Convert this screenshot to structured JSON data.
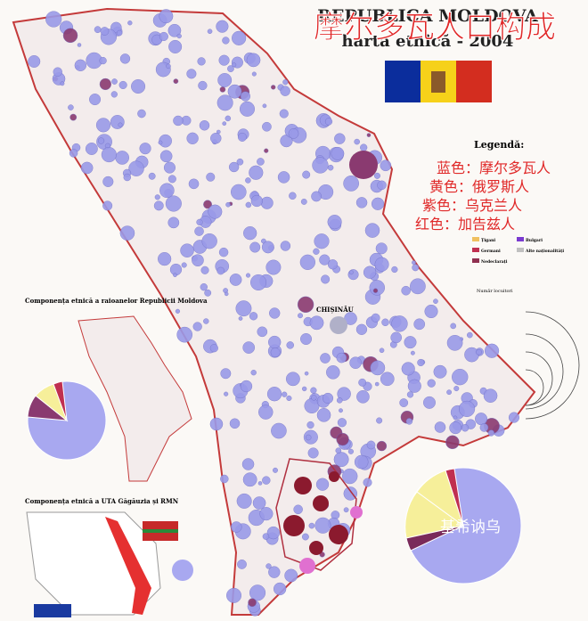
{
  "header": {
    "title": "REPUBLICA MOLDOVA",
    "subtitle": "harta etnică - 2004",
    "overlay_title": "摩尔多瓦人口构成"
  },
  "legend": {
    "title": "Legendă:",
    "notes": [
      "蓝色：摩尔多瓦人",
      "黄色：俄罗斯人",
      "紫色：乌克兰人",
      "红色：加告兹人"
    ],
    "items": [
      "Țigani",
      "Bulgari",
      "Germani",
      "Alte naționalități",
      "Nedeclarați"
    ],
    "size_title": "Număr locuitori"
  },
  "map": {
    "capital": "CHIȘINĂU",
    "capital_note": "基希讷乌"
  },
  "insets": {
    "raioane": "Componența etnică a raioanelor Republicii Moldova",
    "gagauzia": "Componența etnică a UTA Găgăuzia și RMN"
  }
}
